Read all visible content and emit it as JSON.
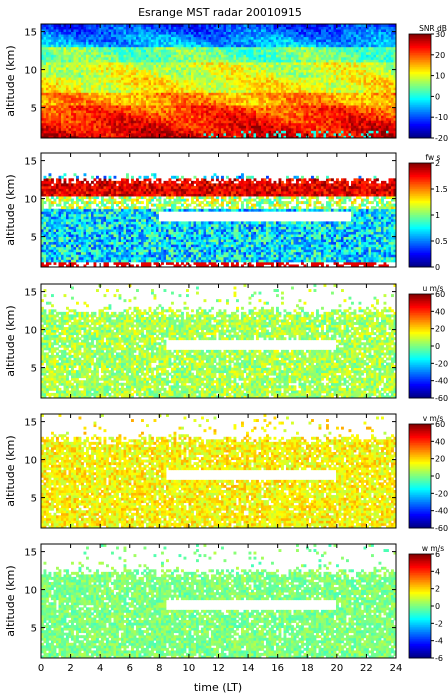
{
  "title": "Esrange MST radar 20010915",
  "xlabel": "time (LT)",
  "colors": {
    "colormap": [
      "#000080",
      "#0000ff",
      "#0080ff",
      "#00ffff",
      "#80ff80",
      "#ffff00",
      "#ff8000",
      "#ff0000",
      "#800000"
    ],
    "background": "#ffffff",
    "axis": "#000000"
  },
  "chart_data": [
    {
      "type": "heatmap",
      "quantity": "SNR",
      "ylabel": "altitude (km)",
      "x_range": [
        0,
        24
      ],
      "y_range": [
        1,
        16
      ],
      "x_ticks": [
        0,
        2,
        4,
        6,
        8,
        10,
        12,
        14,
        16,
        18,
        20,
        22,
        24
      ],
      "y_ticks": [
        5,
        10,
        15
      ],
      "colorbar": {
        "label": "SNR dB",
        "range": [
          -20,
          30
        ],
        "ticks": [
          30,
          20,
          10,
          0,
          -10,
          -20
        ]
      }
    },
    {
      "type": "heatmap",
      "quantity": "spectral width",
      "ylabel": "altitude (km)",
      "x_range": [
        0,
        24
      ],
      "y_range": [
        1,
        16
      ],
      "x_ticks": [
        0,
        2,
        4,
        6,
        8,
        10,
        12,
        14,
        16,
        18,
        20,
        22,
        24
      ],
      "y_ticks": [
        5,
        10,
        15
      ],
      "colorbar": {
        "label": "fw s",
        "range": [
          0,
          2
        ],
        "ticks": [
          2,
          1.5,
          1,
          0.5,
          0
        ]
      }
    },
    {
      "type": "heatmap",
      "quantity": "zonal wind",
      "ylabel": "altitude (km)",
      "x_range": [
        0,
        24
      ],
      "y_range": [
        1,
        16
      ],
      "x_ticks": [
        0,
        2,
        4,
        6,
        8,
        10,
        12,
        14,
        16,
        18,
        20,
        22,
        24
      ],
      "y_ticks": [
        5,
        10,
        15
      ],
      "colorbar": {
        "label": "u m/s",
        "range": [
          -60,
          60
        ],
        "ticks": [
          60,
          40,
          20,
          0,
          -20,
          -40,
          -60
        ]
      }
    },
    {
      "type": "heatmap",
      "quantity": "meridional wind",
      "ylabel": "altitude (km)",
      "x_range": [
        0,
        24
      ],
      "y_range": [
        1,
        16
      ],
      "x_ticks": [
        0,
        2,
        4,
        6,
        8,
        10,
        12,
        14,
        16,
        18,
        20,
        22,
        24
      ],
      "y_ticks": [
        5,
        10,
        15
      ],
      "colorbar": {
        "label": "v m/s",
        "range": [
          -60,
          60
        ],
        "ticks": [
          60,
          40,
          20,
          0,
          -20,
          -40,
          -60
        ]
      }
    },
    {
      "type": "heatmap",
      "quantity": "vertical wind",
      "ylabel": "altitude (km)",
      "x_range": [
        0,
        24
      ],
      "y_range": [
        1,
        16
      ],
      "x_ticks": [
        0,
        2,
        4,
        6,
        8,
        10,
        12,
        14,
        16,
        18,
        20,
        22,
        24
      ],
      "y_ticks": [
        5,
        10,
        15
      ],
      "colorbar": {
        "label": "w m/s",
        "range": [
          -6,
          6
        ],
        "ticks": [
          6,
          4,
          2,
          0,
          -2,
          -4,
          -6
        ]
      }
    }
  ]
}
